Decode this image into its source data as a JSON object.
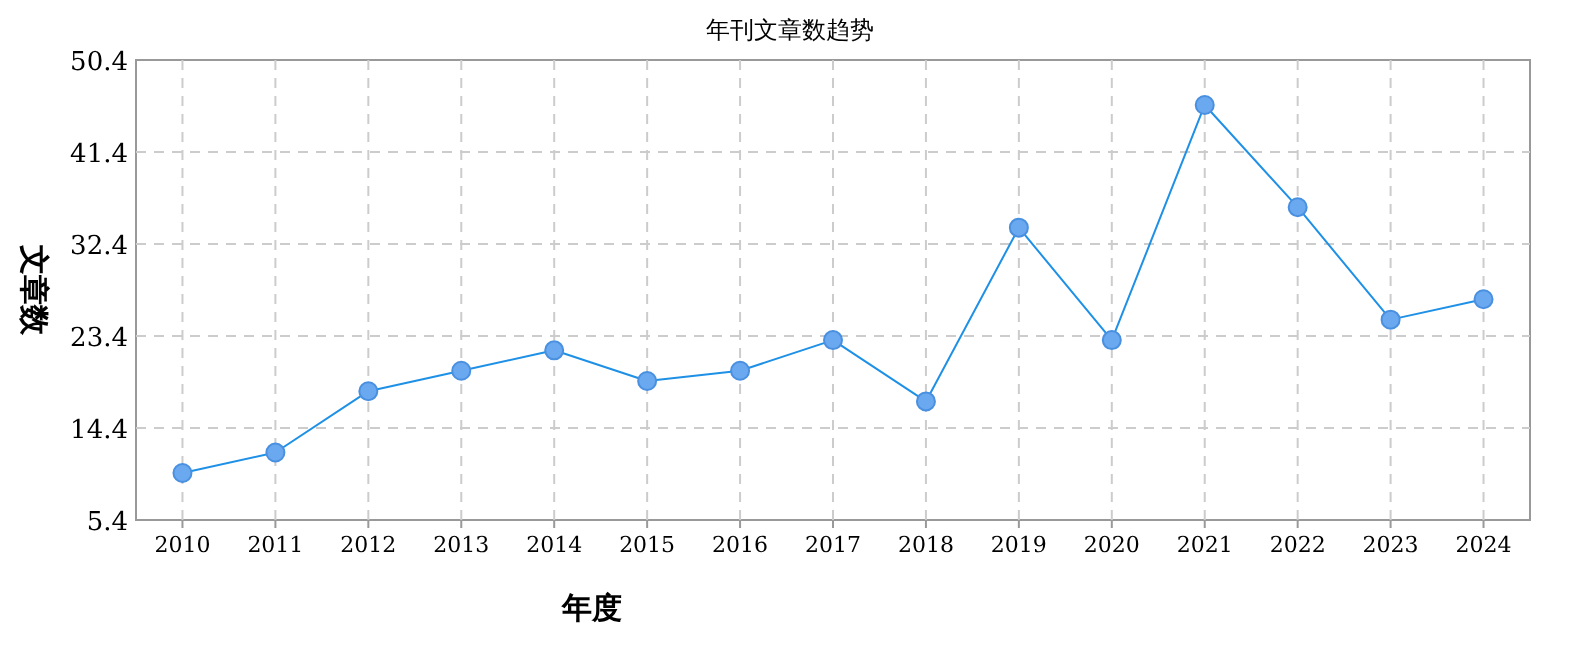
{
  "chart_data": {
    "type": "line",
    "title": "年刊文章数趋势",
    "xlabel": "年度",
    "ylabel": "文章数",
    "categories": [
      "2010",
      "2011",
      "2012",
      "2013",
      "2014",
      "2015",
      "2016",
      "2017",
      "2018",
      "2019",
      "2020",
      "2021",
      "2022",
      "2023",
      "2024"
    ],
    "series": [
      {
        "color": "#1e90e6",
        "values": [
          10,
          12,
          18,
          20,
          22,
          19,
          20,
          23,
          17,
          34,
          23,
          46,
          36,
          25,
          27
        ]
      }
    ],
    "ylim": [
      5.4,
      50.4
    ],
    "yticks": [
      5.4,
      14.4,
      23.4,
      32.4,
      41.4,
      50.4
    ],
    "grid": true,
    "marker": "circle",
    "line_style": "solid"
  }
}
